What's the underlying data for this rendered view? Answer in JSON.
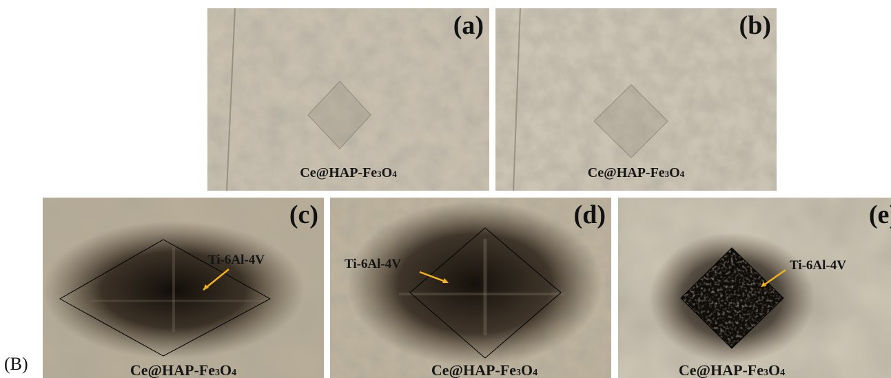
{
  "figure_label": "(B)",
  "panels": [
    {
      "letter": "(a)",
      "caption_prefix": "Ce@HAP-Fe",
      "caption_sub1": "3",
      "caption_mid": "O",
      "caption_sub2": "4"
    },
    {
      "letter": "(b)",
      "caption_prefix": "Ce@HAP-Fe",
      "caption_sub1": "3",
      "caption_mid": "O",
      "caption_sub2": "4"
    },
    {
      "letter": "(c)",
      "caption_prefix": "Ce@HAP-Fe",
      "caption_sub1": "3",
      "caption_mid": "O",
      "caption_sub2": "4",
      "material": "Ti-6Al-4V"
    },
    {
      "letter": "(d)",
      "caption_prefix": "Ce@HAP-Fe",
      "caption_sub1": "3",
      "caption_mid": "O",
      "caption_sub2": "4",
      "material": "Ti-6Al-4V"
    },
    {
      "letter": "(e)",
      "caption_prefix": "Ce@HAP-Fe",
      "caption_sub1": "3",
      "caption_mid": "O",
      "caption_sub2": "4",
      "material": "Ti-6Al-4V"
    }
  ],
  "colors": {
    "arrow": "#f2b21a",
    "indent_outline": "#000000"
  }
}
